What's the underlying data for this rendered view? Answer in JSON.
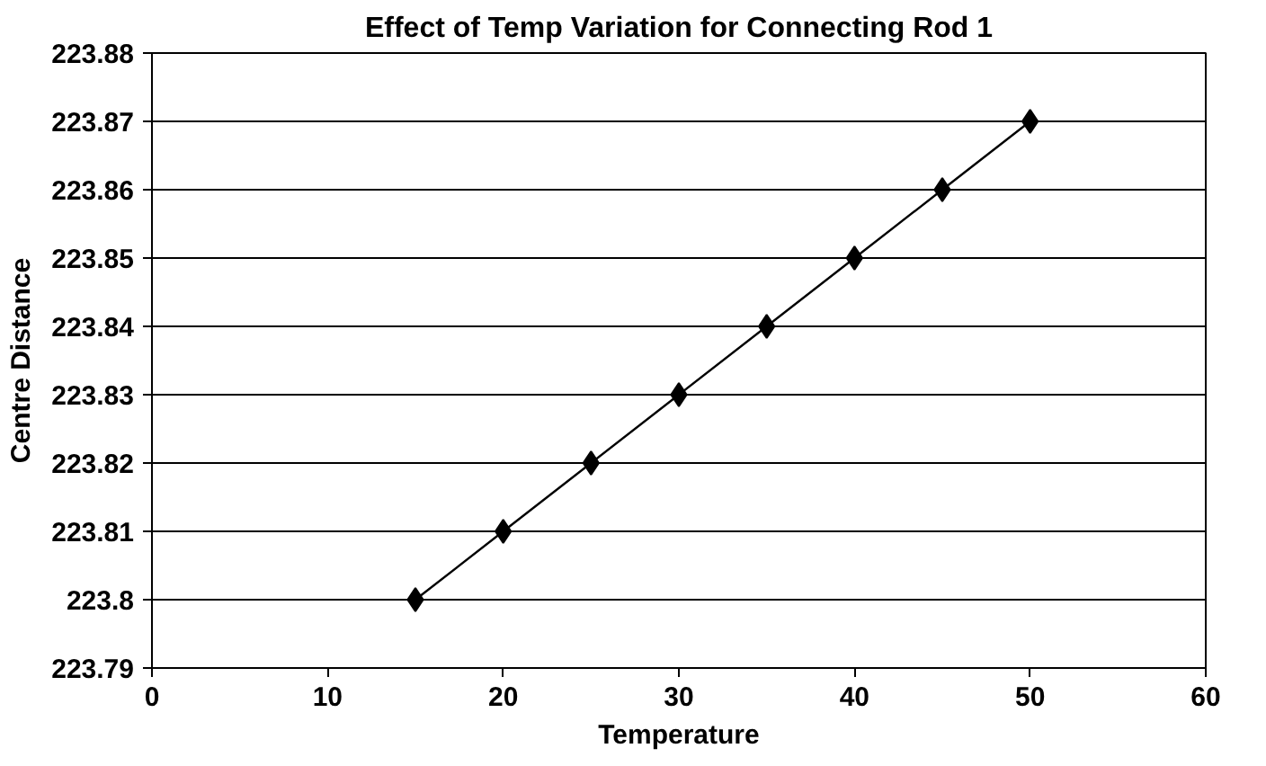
{
  "chart_data": {
    "type": "line",
    "title": "Effect of Temp Variation for Connecting Rod 1",
    "xlabel": "Temperature",
    "ylabel": "Centre Distance",
    "x": [
      15,
      20,
      25,
      30,
      35,
      40,
      45,
      50
    ],
    "series": [
      {
        "color": "#000000",
        "values": [
          223.8,
          223.81,
          223.82,
          223.83,
          223.84,
          223.85,
          223.86,
          223.87
        ]
      }
    ],
    "xlim": [
      0,
      60
    ],
    "xticks": [
      0,
      10,
      20,
      30,
      40,
      50,
      60
    ],
    "ylim": [
      223.79,
      223.88
    ],
    "yticks": [
      223.79,
      223.8,
      223.81,
      223.82,
      223.83,
      223.84,
      223.85,
      223.86,
      223.87,
      223.88
    ],
    "grid": "y",
    "marker": "diamond",
    "line_style": "solid"
  }
}
